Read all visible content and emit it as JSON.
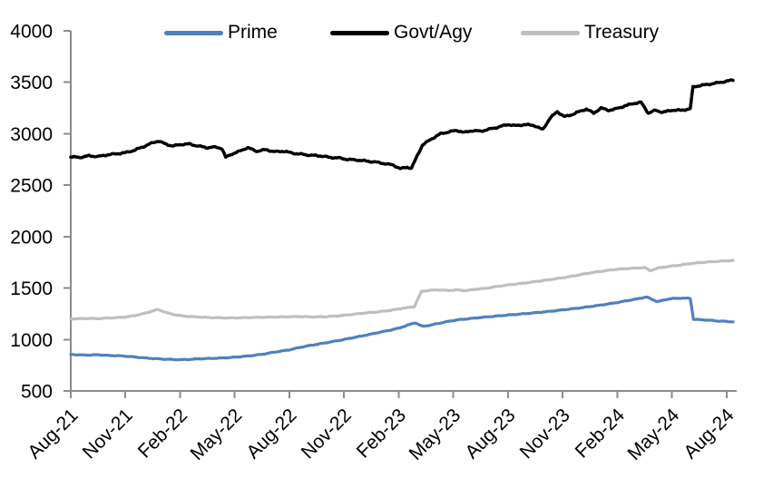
{
  "chart_data": {
    "type": "line",
    "title": "",
    "grid": false,
    "legend_position": "top",
    "x_unit": "months since Aug-2021",
    "x_axis": {
      "tick_labels": [
        "Aug-21",
        "Nov-21",
        "Feb-22",
        "May-22",
        "Aug-22",
        "Nov-22",
        "Feb-23",
        "May-23",
        "Aug-23",
        "Nov-23",
        "Feb-24",
        "May-24",
        "Aug-24"
      ],
      "tick_interval_months": 3,
      "label_rotation_deg": -45
    },
    "y_axis": {
      "ticks": [
        500,
        1000,
        1500,
        2000,
        2500,
        3000,
        3500,
        4000
      ],
      "range": [
        500,
        4000
      ]
    },
    "colors": {
      "axis": "#8c8c8c",
      "text": "#000000"
    },
    "series": [
      {
        "name": "Prime",
        "color": "#4F81BD",
        "points": [
          [
            0,
            855
          ],
          [
            0.5,
            850
          ],
          [
            1,
            848
          ],
          [
            1.5,
            852
          ],
          [
            2,
            845
          ],
          [
            2.5,
            843
          ],
          [
            3,
            838
          ],
          [
            3.5,
            830
          ],
          [
            4,
            822
          ],
          [
            4.5,
            815
          ],
          [
            5,
            810
          ],
          [
            5.5,
            806
          ],
          [
            6,
            804
          ],
          [
            6.5,
            806
          ],
          [
            7,
            812
          ],
          [
            7.5,
            815
          ],
          [
            8,
            818
          ],
          [
            8.5,
            822
          ],
          [
            9,
            828
          ],
          [
            9.5,
            836
          ],
          [
            10,
            845
          ],
          [
            10.5,
            856
          ],
          [
            11,
            872
          ],
          [
            11.5,
            886
          ],
          [
            12,
            900
          ],
          [
            12.5,
            920
          ],
          [
            13,
            938
          ],
          [
            13.5,
            953
          ],
          [
            14,
            968
          ],
          [
            14.5,
            984
          ],
          [
            15,
            1000
          ],
          [
            15.5,
            1018
          ],
          [
            16,
            1035
          ],
          [
            16.5,
            1053
          ],
          [
            17,
            1072
          ],
          [
            17.5,
            1090
          ],
          [
            18,
            1110
          ],
          [
            18.5,
            1140
          ],
          [
            18.9,
            1163
          ],
          [
            19.3,
            1128
          ],
          [
            19.7,
            1138
          ],
          [
            20,
            1150
          ],
          [
            20.5,
            1168
          ],
          [
            21,
            1185
          ],
          [
            21.5,
            1196
          ],
          [
            22,
            1205
          ],
          [
            22.5,
            1214
          ],
          [
            23,
            1222
          ],
          [
            23.5,
            1230
          ],
          [
            24,
            1238
          ],
          [
            24.5,
            1245
          ],
          [
            25,
            1252
          ],
          [
            25.5,
            1260
          ],
          [
            26,
            1268
          ],
          [
            26.5,
            1278
          ],
          [
            27,
            1288
          ],
          [
            27.5,
            1298
          ],
          [
            28,
            1308
          ],
          [
            28.5,
            1320
          ],
          [
            29,
            1332
          ],
          [
            29.5,
            1346
          ],
          [
            30,
            1360
          ],
          [
            30.5,
            1376
          ],
          [
            31,
            1392
          ],
          [
            31.6,
            1413
          ],
          [
            32.2,
            1368
          ],
          [
            32.7,
            1390
          ],
          [
            33,
            1398
          ],
          [
            33.5,
            1402
          ],
          [
            34,
            1400
          ],
          [
            34.18,
            1196
          ],
          [
            34.6,
            1192
          ],
          [
            35,
            1188
          ],
          [
            35.5,
            1180
          ],
          [
            36.35,
            1172
          ]
        ]
      },
      {
        "name": "Govt/Agy",
        "color": "#000000",
        "points": [
          [
            0,
            2775
          ],
          [
            0.5,
            2770
          ],
          [
            1,
            2785
          ],
          [
            1.5,
            2778
          ],
          [
            2,
            2795
          ],
          [
            2.5,
            2805
          ],
          [
            3,
            2815
          ],
          [
            3.5,
            2840
          ],
          [
            4,
            2875
          ],
          [
            4.4,
            2905
          ],
          [
            4.8,
            2930
          ],
          [
            5.2,
            2900
          ],
          [
            5.6,
            2880
          ],
          [
            6,
            2895
          ],
          [
            6.5,
            2900
          ],
          [
            7,
            2880
          ],
          [
            7.5,
            2865
          ],
          [
            8,
            2870
          ],
          [
            8.3,
            2855
          ],
          [
            8.5,
            2770
          ],
          [
            8.8,
            2800
          ],
          [
            9.2,
            2825
          ],
          [
            9.7,
            2865
          ],
          [
            10.2,
            2830
          ],
          [
            10.7,
            2845
          ],
          [
            11.2,
            2825
          ],
          [
            11.7,
            2830
          ],
          [
            12.2,
            2810
          ],
          [
            12.7,
            2800
          ],
          [
            13.2,
            2790
          ],
          [
            13.7,
            2785
          ],
          [
            14.2,
            2770
          ],
          [
            14.7,
            2765
          ],
          [
            15.2,
            2750
          ],
          [
            15.7,
            2745
          ],
          [
            16.2,
            2735
          ],
          [
            16.7,
            2725
          ],
          [
            17.2,
            2710
          ],
          [
            17.7,
            2695
          ],
          [
            18.1,
            2660
          ],
          [
            18.45,
            2675
          ],
          [
            18.7,
            2665
          ],
          [
            19,
            2780
          ],
          [
            19.3,
            2890
          ],
          [
            19.8,
            2950
          ],
          [
            20.3,
            3000
          ],
          [
            20.8,
            3020
          ],
          [
            21.2,
            3032
          ],
          [
            21.6,
            3012
          ],
          [
            22,
            3030
          ],
          [
            22.5,
            3025
          ],
          [
            23,
            3045
          ],
          [
            23.4,
            3062
          ],
          [
            24,
            3090
          ],
          [
            24.4,
            3078
          ],
          [
            24.9,
            3088
          ],
          [
            25.4,
            3082
          ],
          [
            25.9,
            3040
          ],
          [
            26.3,
            3150
          ],
          [
            26.7,
            3215
          ],
          [
            27.1,
            3165
          ],
          [
            27.5,
            3185
          ],
          [
            27.9,
            3215
          ],
          [
            28.3,
            3240
          ],
          [
            28.7,
            3200
          ],
          [
            29.1,
            3250
          ],
          [
            29.5,
            3228
          ],
          [
            29.9,
            3240
          ],
          [
            30.4,
            3270
          ],
          [
            30.9,
            3295
          ],
          [
            31.3,
            3305
          ],
          [
            31.7,
            3200
          ],
          [
            32.1,
            3228
          ],
          [
            32.5,
            3208
          ],
          [
            33,
            3230
          ],
          [
            33.5,
            3228
          ],
          [
            34,
            3242
          ],
          [
            34.15,
            3455
          ],
          [
            34.6,
            3470
          ],
          [
            35,
            3480
          ],
          [
            35.5,
            3495
          ],
          [
            36.35,
            3522
          ]
        ]
      },
      {
        "name": "Treasury",
        "color": "#BFBFBF",
        "points": [
          [
            0,
            1200
          ],
          [
            0.5,
            1202
          ],
          [
            1,
            1205
          ],
          [
            1.5,
            1203
          ],
          [
            2,
            1208
          ],
          [
            2.5,
            1212
          ],
          [
            3,
            1218
          ],
          [
            3.5,
            1232
          ],
          [
            4,
            1252
          ],
          [
            4.4,
            1272
          ],
          [
            4.8,
            1292
          ],
          [
            5.3,
            1258
          ],
          [
            5.8,
            1238
          ],
          [
            6.3,
            1226
          ],
          [
            7,
            1218
          ],
          [
            7.7,
            1213
          ],
          [
            8.4,
            1210
          ],
          [
            9.1,
            1210
          ],
          [
            9.8,
            1213
          ],
          [
            10.5,
            1216
          ],
          [
            11.2,
            1218
          ],
          [
            11.9,
            1221
          ],
          [
            12.6,
            1223
          ],
          [
            13.3,
            1219
          ],
          [
            14,
            1222
          ],
          [
            14.7,
            1230
          ],
          [
            15.4,
            1243
          ],
          [
            16.1,
            1257
          ],
          [
            16.8,
            1267
          ],
          [
            17.5,
            1282
          ],
          [
            18.2,
            1303
          ],
          [
            18.85,
            1318
          ],
          [
            19.25,
            1468
          ],
          [
            19.7,
            1478
          ],
          [
            20.2,
            1482
          ],
          [
            20.7,
            1476
          ],
          [
            21.2,
            1482
          ],
          [
            21.7,
            1475
          ],
          [
            22.2,
            1488
          ],
          [
            22.8,
            1498
          ],
          [
            23.4,
            1516
          ],
          [
            24,
            1530
          ],
          [
            24.6,
            1542
          ],
          [
            25.2,
            1556
          ],
          [
            25.8,
            1570
          ],
          [
            26.4,
            1585
          ],
          [
            27,
            1600
          ],
          [
            27.6,
            1618
          ],
          [
            28.2,
            1638
          ],
          [
            28.8,
            1655
          ],
          [
            29.4,
            1670
          ],
          [
            30,
            1683
          ],
          [
            30.6,
            1690
          ],
          [
            31.2,
            1695
          ],
          [
            31.5,
            1700
          ],
          [
            31.8,
            1668
          ],
          [
            32.2,
            1694
          ],
          [
            32.8,
            1710
          ],
          [
            33.4,
            1722
          ],
          [
            34,
            1738
          ],
          [
            34.6,
            1748
          ],
          [
            35.2,
            1756
          ],
          [
            36.35,
            1768
          ]
        ]
      }
    ]
  }
}
